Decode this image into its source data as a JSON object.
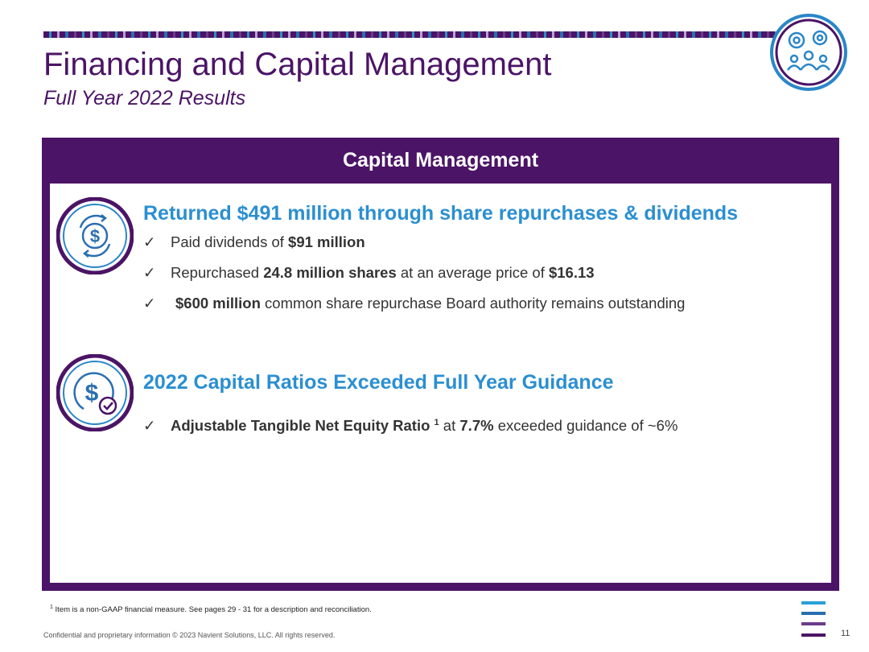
{
  "header": {
    "title": "Financing and Capital Management",
    "subtitle": "Full Year 2022 Results"
  },
  "panel": {
    "heading": "Capital Management",
    "sections": [
      {
        "heading": "Returned $491 million through share repurchases & dividends",
        "icon": "dollar-cycle-icon",
        "bullets": [
          {
            "check": "✓",
            "t1": "Paid dividends of ",
            "b1": "$91 million"
          },
          {
            "check": "✓",
            "t1": "Repurchased ",
            "b1": "24.8 million shares",
            "t2": " at an average price of ",
            "b2": "$16.13"
          },
          {
            "check": "✓",
            "b1": "$600 million",
            "t2": " common share repurchase Board authority remains outstanding"
          }
        ]
      },
      {
        "heading": "2022 Capital Ratios Exceeded Full Year Guidance",
        "icon": "dollar-check-icon",
        "bullets": [
          {
            "check": "✓",
            "b1": "Adjustable Tangible Net Equity Ratio ",
            "sup": "1",
            "t2": " at ",
            "b2": "7.7%",
            "t3": " exceeded guidance of ~6%"
          }
        ]
      }
    ]
  },
  "footer": {
    "footnote_sup": "1",
    "footnote": " Item is a non-GAAP financial measure.  See pages 29 - 31  for a description and reconciliation.",
    "copyright": "Confidential and proprietary information  © 2023 Navient Solutions, LLC. All rights reserved.",
    "page_number": "11"
  },
  "colors": {
    "brand_purple": "#4b1466",
    "accent_blue": "#2b8fd0"
  }
}
